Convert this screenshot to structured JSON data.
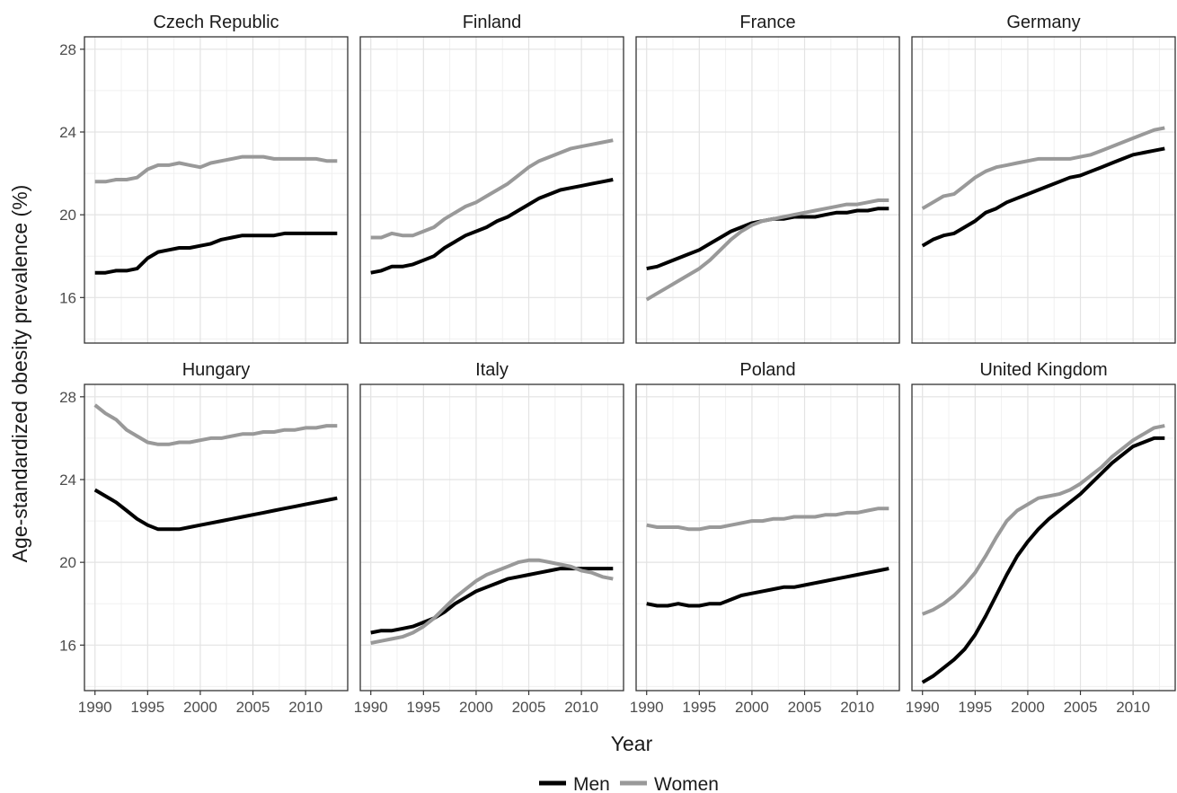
{
  "chart_data": {
    "type": "line",
    "xlabel": "Year",
    "ylabel": "Age-standardized obesity prevalence (%)",
    "xlim": [
      1989,
      2014
    ],
    "ylim": [
      13.8,
      28.6
    ],
    "x_ticks": [
      1990,
      1995,
      2000,
      2005,
      2010
    ],
    "y_ticks": [
      16,
      20,
      24,
      28
    ],
    "grid": true,
    "legend_position": "bottom",
    "series_styles": [
      {
        "name": "Men",
        "color": "#000000"
      },
      {
        "name": "Women",
        "color": "#999999"
      }
    ],
    "x": [
      1990,
      1991,
      1992,
      1993,
      1994,
      1995,
      1996,
      1997,
      1998,
      1999,
      2000,
      2001,
      2002,
      2003,
      2004,
      2005,
      2006,
      2007,
      2008,
      2009,
      2010,
      2011,
      2012,
      2013
    ],
    "panels": [
      {
        "title": "Czech Republic",
        "series": [
          {
            "name": "Men",
            "values": [
              17.2,
              17.2,
              17.3,
              17.3,
              17.4,
              17.9,
              18.2,
              18.3,
              18.4,
              18.4,
              18.5,
              18.6,
              18.8,
              18.9,
              19.0,
              19.0,
              19.0,
              19.0,
              19.1,
              19.1,
              19.1,
              19.1,
              19.1,
              19.1
            ]
          },
          {
            "name": "Women",
            "values": [
              21.6,
              21.6,
              21.7,
              21.7,
              21.8,
              22.2,
              22.4,
              22.4,
              22.5,
              22.4,
              22.3,
              22.5,
              22.6,
              22.7,
              22.8,
              22.8,
              22.8,
              22.7,
              22.7,
              22.7,
              22.7,
              22.7,
              22.6,
              22.6
            ]
          }
        ]
      },
      {
        "title": "Finland",
        "series": [
          {
            "name": "Men",
            "values": [
              17.2,
              17.3,
              17.5,
              17.5,
              17.6,
              17.8,
              18.0,
              18.4,
              18.7,
              19.0,
              19.2,
              19.4,
              19.7,
              19.9,
              20.2,
              20.5,
              20.8,
              21.0,
              21.2,
              21.3,
              21.4,
              21.5,
              21.6,
              21.7
            ]
          },
          {
            "name": "Women",
            "values": [
              18.9,
              18.9,
              19.1,
              19.0,
              19.0,
              19.2,
              19.4,
              19.8,
              20.1,
              20.4,
              20.6,
              20.9,
              21.2,
              21.5,
              21.9,
              22.3,
              22.6,
              22.8,
              23.0,
              23.2,
              23.3,
              23.4,
              23.5,
              23.6
            ]
          }
        ]
      },
      {
        "title": "France",
        "series": [
          {
            "name": "Men",
            "values": [
              17.4,
              17.5,
              17.7,
              17.9,
              18.1,
              18.3,
              18.6,
              18.9,
              19.2,
              19.4,
              19.6,
              19.7,
              19.8,
              19.8,
              19.9,
              19.9,
              19.9,
              20.0,
              20.1,
              20.1,
              20.2,
              20.2,
              20.3,
              20.3
            ]
          },
          {
            "name": "Women",
            "values": [
              15.9,
              16.2,
              16.5,
              16.8,
              17.1,
              17.4,
              17.8,
              18.3,
              18.8,
              19.2,
              19.5,
              19.7,
              19.8,
              19.9,
              20.0,
              20.1,
              20.2,
              20.3,
              20.4,
              20.5,
              20.5,
              20.6,
              20.7,
              20.7
            ]
          }
        ]
      },
      {
        "title": "Germany",
        "series": [
          {
            "name": "Men",
            "values": [
              18.5,
              18.8,
              19.0,
              19.1,
              19.4,
              19.7,
              20.1,
              20.3,
              20.6,
              20.8,
              21.0,
              21.2,
              21.4,
              21.6,
              21.8,
              21.9,
              22.1,
              22.3,
              22.5,
              22.7,
              22.9,
              23.0,
              23.1,
              23.2
            ]
          },
          {
            "name": "Women",
            "values": [
              20.3,
              20.6,
              20.9,
              21.0,
              21.4,
              21.8,
              22.1,
              22.3,
              22.4,
              22.5,
              22.6,
              22.7,
              22.7,
              22.7,
              22.7,
              22.8,
              22.9,
              23.1,
              23.3,
              23.5,
              23.7,
              23.9,
              24.1,
              24.2
            ]
          }
        ]
      },
      {
        "title": "Hungary",
        "series": [
          {
            "name": "Men",
            "values": [
              23.5,
              23.2,
              22.9,
              22.5,
              22.1,
              21.8,
              21.6,
              21.6,
              21.6,
              21.7,
              21.8,
              21.9,
              22.0,
              22.1,
              22.2,
              22.3,
              22.4,
              22.5,
              22.6,
              22.7,
              22.8,
              22.9,
              23.0,
              23.1
            ]
          },
          {
            "name": "Women",
            "values": [
              27.6,
              27.2,
              26.9,
              26.4,
              26.1,
              25.8,
              25.7,
              25.7,
              25.8,
              25.8,
              25.9,
              26.0,
              26.0,
              26.1,
              26.2,
              26.2,
              26.3,
              26.3,
              26.4,
              26.4,
              26.5,
              26.5,
              26.6,
              26.6
            ]
          }
        ]
      },
      {
        "title": "Italy",
        "series": [
          {
            "name": "Men",
            "values": [
              16.6,
              16.7,
              16.7,
              16.8,
              16.9,
              17.1,
              17.3,
              17.6,
              18.0,
              18.3,
              18.6,
              18.8,
              19.0,
              19.2,
              19.3,
              19.4,
              19.5,
              19.6,
              19.7,
              19.7,
              19.7,
              19.7,
              19.7,
              19.7
            ]
          },
          {
            "name": "Women",
            "values": [
              16.1,
              16.2,
              16.3,
              16.4,
              16.6,
              16.9,
              17.3,
              17.8,
              18.3,
              18.7,
              19.1,
              19.4,
              19.6,
              19.8,
              20.0,
              20.1,
              20.1,
              20.0,
              19.9,
              19.8,
              19.6,
              19.5,
              19.3,
              19.2
            ]
          }
        ]
      },
      {
        "title": "Poland",
        "series": [
          {
            "name": "Men",
            "values": [
              18.0,
              17.9,
              17.9,
              18.0,
              17.9,
              17.9,
              18.0,
              18.0,
              18.2,
              18.4,
              18.5,
              18.6,
              18.7,
              18.8,
              18.8,
              18.9,
              19.0,
              19.1,
              19.2,
              19.3,
              19.4,
              19.5,
              19.6,
              19.7
            ]
          },
          {
            "name": "Women",
            "values": [
              21.8,
              21.7,
              21.7,
              21.7,
              21.6,
              21.6,
              21.7,
              21.7,
              21.8,
              21.9,
              22.0,
              22.0,
              22.1,
              22.1,
              22.2,
              22.2,
              22.2,
              22.3,
              22.3,
              22.4,
              22.4,
              22.5,
              22.6,
              22.6
            ]
          }
        ]
      },
      {
        "title": "United Kingdom",
        "series": [
          {
            "name": "Men",
            "values": [
              14.2,
              14.5,
              14.9,
              15.3,
              15.8,
              16.5,
              17.4,
              18.4,
              19.4,
              20.3,
              21.0,
              21.6,
              22.1,
              22.5,
              22.9,
              23.3,
              23.8,
              24.3,
              24.8,
              25.2,
              25.6,
              25.8,
              26.0,
              26.0
            ]
          },
          {
            "name": "Women",
            "values": [
              17.5,
              17.7,
              18.0,
              18.4,
              18.9,
              19.5,
              20.3,
              21.2,
              22.0,
              22.5,
              22.8,
              23.1,
              23.2,
              23.3,
              23.5,
              23.8,
              24.2,
              24.6,
              25.1,
              25.5,
              25.9,
              26.2,
              26.5,
              26.6
            ]
          }
        ]
      }
    ]
  }
}
